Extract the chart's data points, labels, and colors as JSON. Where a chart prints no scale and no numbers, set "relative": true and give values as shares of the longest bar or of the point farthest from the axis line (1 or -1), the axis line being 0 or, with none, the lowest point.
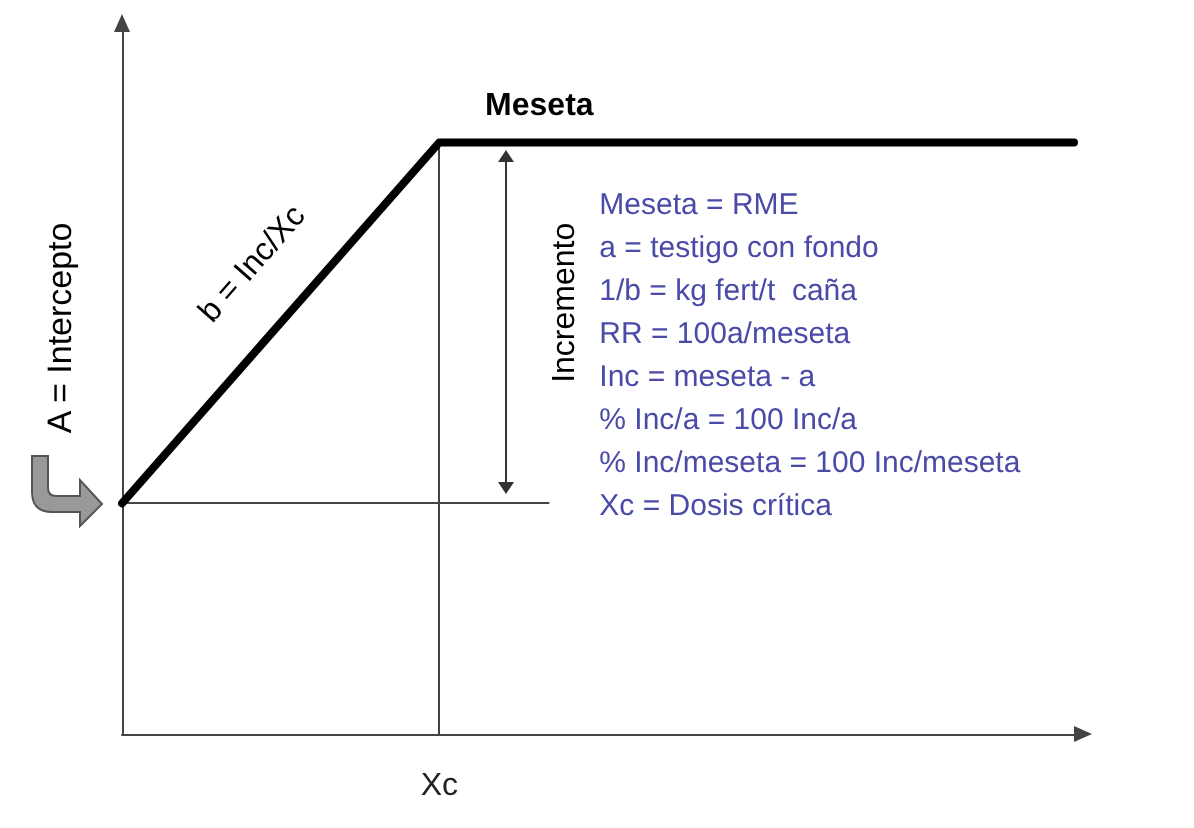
{
  "chart_data": {
    "type": "line",
    "relative": true,
    "color": "#000000",
    "categories": [
      null,
      null,
      null,
      null
    ],
    "values": [
      0.39,
      1,
      1,
      1
    ],
    "grid": false,
    "marker": "none",
    "line_style": "solid",
    "ref_lines": [
      {
        "axis": "y",
        "value": 0.39,
        "label": null
      }
    ],
    "annotations": [
      "Meseta",
      "b = Inc/Xc",
      "A = Intercepto",
      "Incremento",
      "Xc",
      "Meseta = RME",
      "a = testigo con fondo",
      "1/b = kg fert/t  caña",
      "RR = 100a/meseta",
      "Inc = meseta - a",
      "% Inc/a = 100 Inc/a",
      "% Inc/meseta = 100 Inc/meseta",
      "Xc = Dosis crítica"
    ]
  }
}
